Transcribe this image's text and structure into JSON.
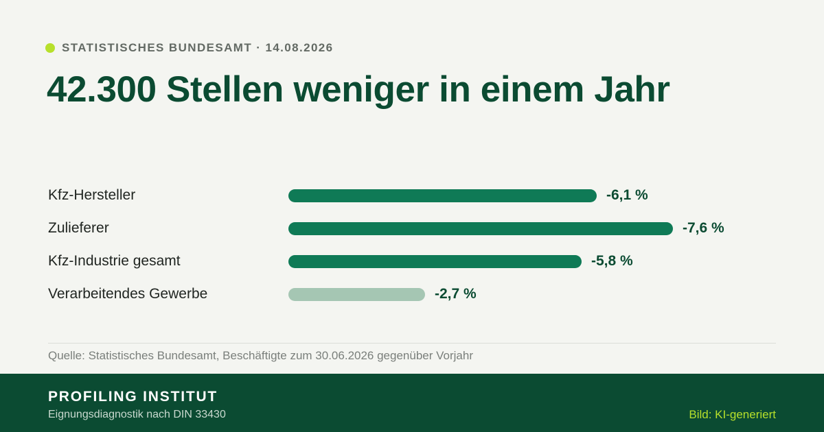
{
  "header": {
    "eyebrow": "STATISTISCHES BUNDESAMT · 14.08.2026",
    "headline": "42.300 Stellen weniger in einem Jahr"
  },
  "chart_data": {
    "type": "bar",
    "orientation": "horizontal",
    "categories": [
      "Kfz-Hersteller",
      "Zulieferer",
      "Kfz-Industrie gesamt",
      "Verarbeitendes Gewerbe"
    ],
    "values": [
      -6.1,
      -7.6,
      -5.8,
      -2.7
    ],
    "value_labels": [
      "-6,1 %",
      "-7,6 %",
      "-5,8 %",
      "-2,7 %"
    ],
    "highlight": [
      true,
      true,
      true,
      false
    ],
    "colors": {
      "primary": "#0f7a56",
      "secondary": "#a5c6b3",
      "value_text": "#0b4b32"
    },
    "title": "",
    "xlabel": "",
    "ylabel": "",
    "xlim": [
      -7.6,
      0
    ],
    "grid": false,
    "legend": "none"
  },
  "source": "Quelle: Statistisches Bundesamt, Beschäftigte zum 30.06.2026 gegenüber Vorjahr",
  "footer": {
    "brand": "PROFILING INSTITUT",
    "tagline": "Eignungsdiagnostik nach DIN 33430",
    "credit": "Bild: KI-generiert"
  },
  "colors": {
    "background": "#f4f5f1",
    "brand_dark": "#0b4b32",
    "accent": "#b7e02b"
  }
}
